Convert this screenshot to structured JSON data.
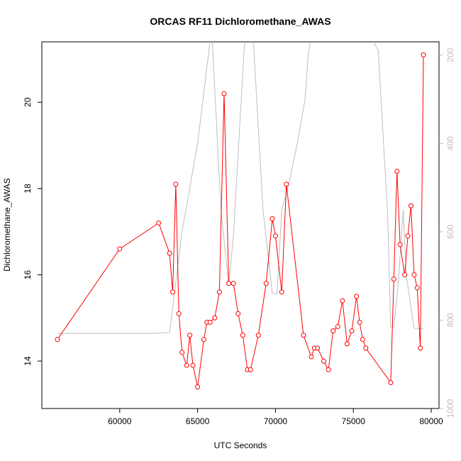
{
  "chart_data": {
    "type": "line",
    "title": "ORCAS RF11 Dichloromethane_AWAS",
    "xlabel": "UTC Seconds",
    "ylabel": "Dichloromethane_AWAS",
    "xlim": [
      55000,
      80500
    ],
    "ylim": [
      12.9,
      21.4
    ],
    "y2lim": [
      1000,
      170
    ],
    "x_ticks": [
      60000,
      65000,
      70000,
      75000,
      80000
    ],
    "x_tick_labels": [
      "60000",
      "65000",
      "70000",
      "75000",
      "80000"
    ],
    "y_ticks": [
      14,
      16,
      18,
      20
    ],
    "y_tick_labels": [
      "14",
      "16",
      "18",
      "20"
    ],
    "y2_ticks": [
      200,
      400,
      600,
      800,
      1000
    ],
    "y2_tick_labels": [
      "200",
      "400",
      "600",
      "800",
      "1000"
    ],
    "grid": false,
    "legend": "none",
    "series": [
      {
        "color": "#ff0000",
        "axis": "left",
        "markers": "open-circle",
        "x": [
          56000,
          60000,
          62500,
          63200,
          63400,
          63600,
          63800,
          64000,
          64300,
          64500,
          64700,
          65000,
          65400,
          65600,
          65800,
          66100,
          66400,
          66700,
          67000,
          67300,
          67600,
          67900,
          68200,
          68400,
          68900,
          69400,
          69800,
          70000,
          70400,
          70700,
          71800,
          72300,
          72500,
          72700,
          73100,
          73400,
          73700,
          74000,
          74300,
          74600,
          74900,
          75200,
          75400,
          75600,
          75800,
          77400,
          77600,
          77800,
          78000,
          78300,
          78500,
          78700,
          78900,
          79100,
          79300,
          79500
        ],
        "y": [
          14.5,
          16.6,
          17.2,
          16.5,
          15.6,
          18.1,
          15.1,
          14.2,
          13.9,
          14.6,
          13.9,
          13.4,
          14.5,
          14.9,
          14.9,
          15.0,
          15.6,
          20.2,
          15.8,
          15.8,
          15.1,
          14.6,
          13.8,
          13.8,
          14.6,
          15.8,
          17.3,
          16.9,
          15.6,
          18.1,
          14.6,
          14.1,
          14.3,
          14.3,
          14.0,
          13.8,
          14.7,
          14.8,
          15.4,
          14.4,
          14.7,
          15.5,
          14.9,
          14.5,
          14.3,
          13.5,
          15.9,
          18.4,
          16.7,
          16.0,
          16.9,
          17.6,
          16.0,
          15.7,
          14.3,
          21.1
        ]
      },
      {
        "color": "#bebebe",
        "axis": "right",
        "markers": "none",
        "x": [
          56000,
          58000,
          60000,
          62000,
          63200,
          64000,
          65000,
          65900,
          66500,
          67000,
          67300,
          68000,
          68300,
          68600,
          69200,
          69800,
          70100,
          70400,
          70800,
          71400,
          71900,
          72100,
          72700,
          73300,
          73500,
          74200,
          74400,
          75400,
          76000,
          76600,
          77200,
          77400,
          77600,
          77900,
          78200,
          78400,
          78900,
          79500
        ],
        "y": [
          830,
          830,
          830,
          830,
          828,
          600,
          400,
          140,
          550,
          720,
          610,
          180,
          140,
          180,
          550,
          740,
          740,
          550,
          500,
          400,
          300,
          200,
          60,
          150,
          150,
          150,
          150,
          100,
          150,
          190,
          560,
          815,
          815,
          710,
          550,
          700,
          818,
          820
        ]
      }
    ]
  }
}
